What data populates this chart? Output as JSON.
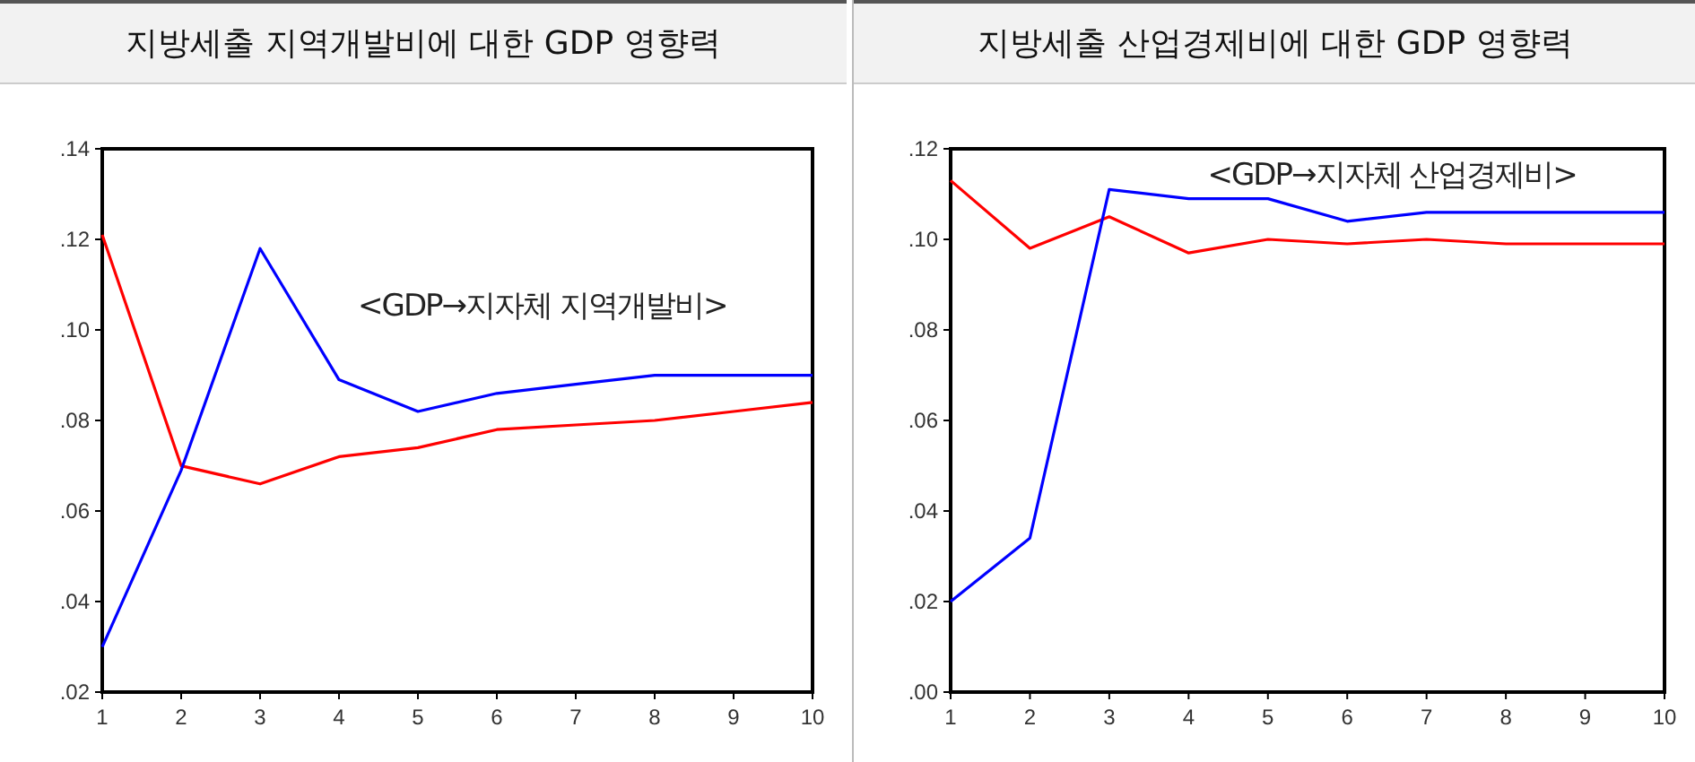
{
  "chart_data": [
    {
      "type": "line",
      "title": "지방세출 지역개발비에 대한 GDP 영향력",
      "x": [
        1,
        2,
        3,
        4,
        5,
        6,
        7,
        8,
        9,
        10
      ],
      "xlim": [
        1,
        10
      ],
      "xticks": [
        1,
        2,
        3,
        4,
        5,
        6,
        7,
        8,
        9,
        10
      ],
      "ylim": [
        0.02,
        0.14
      ],
      "yticks": [
        {
          "value": 0.02,
          "label": ".02"
        },
        {
          "value": 0.04,
          "label": ".04"
        },
        {
          "value": 0.06,
          "label": ".06"
        },
        {
          "value": 0.08,
          "label": ".08"
        },
        {
          "value": 0.1,
          "label": ".10"
        },
        {
          "value": 0.12,
          "label": ".12"
        },
        {
          "value": 0.14,
          "label": ".14"
        }
      ],
      "grid": false,
      "annotations": [
        "<GDP→지자체 지역개발비>"
      ],
      "series": [
        {
          "color": "#ff0000",
          "values": [
            0.121,
            0.07,
            0.066,
            0.072,
            0.074,
            0.078,
            0.079,
            0.08,
            0.082,
            0.084
          ]
        },
        {
          "color": "#0000ff",
          "values": [
            0.03,
            0.069,
            0.118,
            0.089,
            0.082,
            0.086,
            0.088,
            0.09,
            0.09,
            0.09
          ]
        }
      ]
    },
    {
      "type": "line",
      "title": "지방세출 산업경제비에 대한 GDP 영향력",
      "x": [
        1,
        2,
        3,
        4,
        5,
        6,
        7,
        8,
        9,
        10
      ],
      "xlim": [
        1,
        10
      ],
      "xticks": [
        1,
        2,
        3,
        4,
        5,
        6,
        7,
        8,
        9,
        10
      ],
      "ylim": [
        0.0,
        0.12
      ],
      "yticks": [
        {
          "value": 0.0,
          "label": ".00"
        },
        {
          "value": 0.02,
          "label": ".02"
        },
        {
          "value": 0.04,
          "label": ".04"
        },
        {
          "value": 0.06,
          "label": ".06"
        },
        {
          "value": 0.08,
          "label": ".08"
        },
        {
          "value": 0.1,
          "label": ".10"
        },
        {
          "value": 0.12,
          "label": ".12"
        }
      ],
      "grid": false,
      "annotations": [
        "<GDP→지자체 산업경제비>"
      ],
      "series": [
        {
          "color": "#ff0000",
          "values": [
            0.113,
            0.098,
            0.105,
            0.097,
            0.1,
            0.099,
            0.1,
            0.099,
            0.099,
            0.099
          ]
        },
        {
          "color": "#0000ff",
          "values": [
            0.02,
            0.034,
            0.111,
            0.109,
            0.109,
            0.104,
            0.106,
            0.106,
            0.106,
            0.106
          ]
        }
      ]
    }
  ]
}
